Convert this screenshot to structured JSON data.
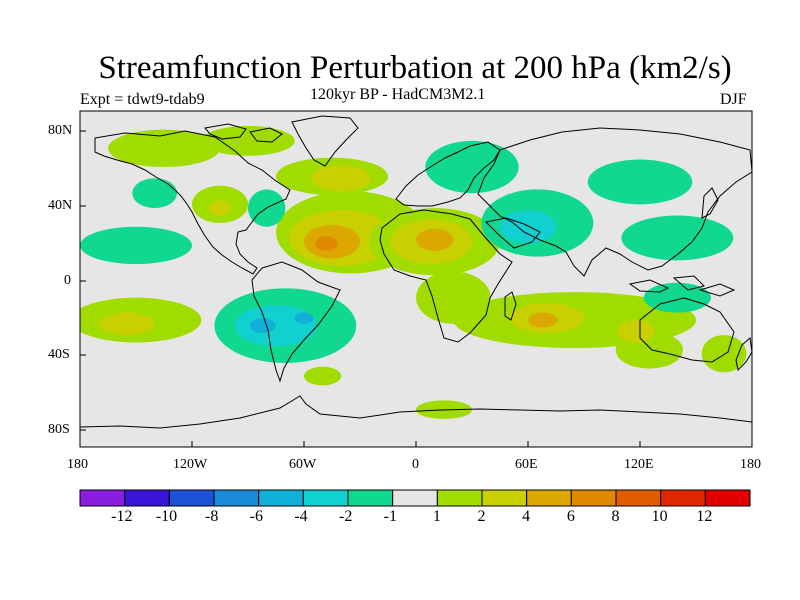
{
  "title": "Streamfunction Perturbation at 200 hPa (km2/s)",
  "expt": "Expt = tdwt9-tdab9",
  "subtitle": "120kyr BP - HadCM3M2.1",
  "season": "DJF",
  "lat_labels": [
    "80N",
    "40N",
    "0",
    "40S",
    "80S"
  ],
  "lon_labels": [
    "180",
    "120W",
    "60W",
    "0",
    "60E",
    "120E",
    "180"
  ],
  "colorbar": {
    "labels": [
      "-12",
      "-10",
      "-8",
      "-6",
      "-4",
      "-2",
      "-1",
      "1",
      "2",
      "4",
      "6",
      "8",
      "10",
      "12"
    ],
    "colors": [
      "#8a1ee0",
      "#3a14d8",
      "#1f50d8",
      "#1a8ad8",
      "#10b0d8",
      "#10d0d0",
      "#10d890",
      "#e6e6e6",
      "#a0dc00",
      "#c8d000",
      "#dca800",
      "#e08800",
      "#e05c00",
      "#e02800",
      "#e00000"
    ]
  },
  "chart_data": {
    "type": "heatmap",
    "title": "Streamfunction Perturbation at 200 hPa (km2/s)",
    "projection": "cylindrical equidistant",
    "lon_range": [
      -180,
      180
    ],
    "lat_range": [
      -90,
      90
    ],
    "levels": [
      -12,
      -10,
      -8,
      -6,
      -4,
      -2,
      -1,
      1,
      2,
      4,
      6,
      8,
      10,
      12
    ],
    "background": "#e6e6e6",
    "regions": [
      {
        "name": "arctic-north-america",
        "lon": -135,
        "lat": 70,
        "rlon": 30,
        "rlat": 10,
        "level": 1
      },
      {
        "name": "arctic-north-america-2",
        "lon": -90,
        "lat": 74,
        "rlon": 25,
        "rlat": 8,
        "level": 1
      },
      {
        "name": "north-atlantic",
        "lon": -45,
        "lat": 55,
        "rlon": 30,
        "rlat": 10,
        "level": 1
      },
      {
        "name": "north-atlantic-core",
        "lon": -40,
        "lat": 54,
        "rlon": 16,
        "rlat": 7,
        "level": 2
      },
      {
        "name": "atlantic-subtropical",
        "lon": -35,
        "lat": 25,
        "rlon": 40,
        "rlat": 22,
        "level": 1
      },
      {
        "name": "atlantic-subtropical-mid",
        "lon": -40,
        "lat": 22,
        "rlon": 28,
        "rlat": 15,
        "level": 2
      },
      {
        "name": "atlantic-subtropical-inner",
        "lon": -45,
        "lat": 20,
        "rlon": 15,
        "rlat": 9,
        "level": 4
      },
      {
        "name": "atlantic-subtropical-core",
        "lon": -48,
        "lat": 19,
        "rlon": 6,
        "rlat": 4,
        "level": 6
      },
      {
        "name": "north-africa",
        "lon": 10,
        "lat": 20,
        "rlon": 35,
        "rlat": 18,
        "level": 1
      },
      {
        "name": "north-africa-mid",
        "lon": 8,
        "lat": 20,
        "rlon": 22,
        "rlat": 12,
        "level": 2
      },
      {
        "name": "north-africa-core",
        "lon": 10,
        "lat": 21,
        "rlon": 10,
        "rlat": 6,
        "level": 4
      },
      {
        "name": "africa-tropical",
        "lon": 20,
        "lat": -10,
        "rlon": 20,
        "rlat": 14,
        "level": 1
      },
      {
        "name": "east-pacific-north",
        "lon": -105,
        "lat": 40,
        "rlon": 15,
        "rlat": 10,
        "level": 1
      },
      {
        "name": "east-pacific-north-core",
        "lon": -105,
        "lat": 38,
        "rlon": 6,
        "rlat": 4,
        "level": 2
      },
      {
        "name": "south-pacific",
        "lon": -150,
        "lat": -22,
        "rlon": 35,
        "rlat": 12,
        "level": 1
      },
      {
        "name": "south-pacific-core",
        "lon": -155,
        "lat": -24,
        "rlon": 15,
        "rlat": 6,
        "level": 2
      },
      {
        "name": "south-indian",
        "lon": 85,
        "lat": -22,
        "rlon": 65,
        "rlat": 15,
        "level": 1
      },
      {
        "name": "south-indian-mid",
        "lon": 70,
        "lat": -21,
        "rlon": 20,
        "rlat": 8,
        "level": 2
      },
      {
        "name": "south-indian-core",
        "lon": 68,
        "lat": -22,
        "rlon": 8,
        "rlat": 4,
        "level": 4
      },
      {
        "name": "australia-south",
        "lon": 125,
        "lat": -38,
        "rlon": 18,
        "rlat": 10,
        "level": 1
      },
      {
        "name": "australia-core",
        "lon": 118,
        "lat": -28,
        "rlon": 10,
        "rlat": 6,
        "level": 2
      },
      {
        "name": "south-atlantic-south",
        "lon": -50,
        "lat": -52,
        "rlon": 10,
        "rlat": 5,
        "level": 1
      },
      {
        "name": "antarctic-atlantic",
        "lon": 15,
        "lat": -70,
        "rlon": 15,
        "rlat": 5,
        "level": 1
      },
      {
        "name": "new-zealand",
        "lon": 165,
        "lat": -40,
        "rlon": 12,
        "rlat": 10,
        "level": 1
      },
      {
        "name": "tropical-pacific",
        "lon": -150,
        "lat": 18,
        "rlon": 30,
        "rlat": 10,
        "level": -1
      },
      {
        "name": "pacific-northwest",
        "lon": -140,
        "lat": 46,
        "rlon": 12,
        "rlat": 8,
        "level": -1
      },
      {
        "name": "north-america-east",
        "lon": -80,
        "lat": 38,
        "rlon": 10,
        "rlat": 10,
        "level": -1
      },
      {
        "name": "scandinavia",
        "lon": 30,
        "lat": 60,
        "rlon": 25,
        "rlat": 14,
        "level": -1
      },
      {
        "name": "siberia",
        "lon": 120,
        "lat": 52,
        "rlon": 28,
        "rlat": 12,
        "level": -1
      },
      {
        "name": "east-asia",
        "lon": 140,
        "lat": 22,
        "rlon": 30,
        "rlat": 12,
        "level": -1
      },
      {
        "name": "middle-east-asia",
        "lon": 65,
        "lat": 30,
        "rlon": 30,
        "rlat": 18,
        "level": -1
      },
      {
        "name": "middle-east-asia-core",
        "lon": 60,
        "lat": 28,
        "rlon": 15,
        "rlat": 9,
        "level": -2
      },
      {
        "name": "south-america",
        "lon": -70,
        "lat": -25,
        "rlon": 38,
        "rlat": 20,
        "level": -1
      },
      {
        "name": "south-america-mid",
        "lon": -75,
        "lat": -25,
        "rlon": 22,
        "rlat": 11,
        "level": -2
      },
      {
        "name": "south-america-core",
        "lon": -82,
        "lat": -25,
        "rlon": 7,
        "rlat": 4,
        "level": -4
      },
      {
        "name": "south-america-core-2",
        "lon": -60,
        "lat": -21,
        "rlon": 5,
        "rlat": 3,
        "level": -4
      },
      {
        "name": "australia-tropic",
        "lon": 140,
        "lat": -10,
        "rlon": 18,
        "rlat": 8,
        "level": -1
      }
    ]
  }
}
